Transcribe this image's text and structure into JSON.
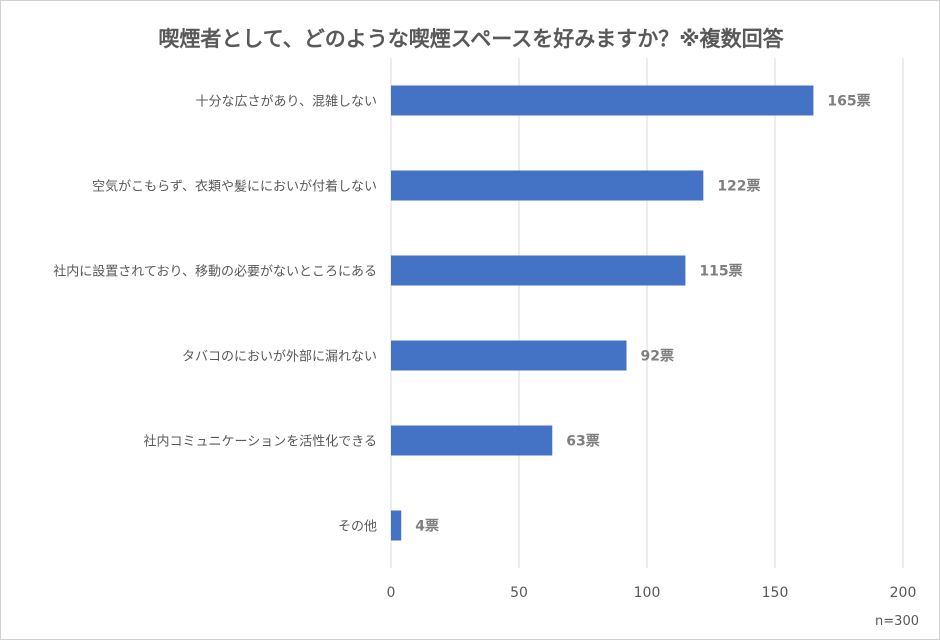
{
  "chart_data": {
    "type": "bar",
    "orientation": "horizontal",
    "title": "喫煙者として、どのような喫煙スペースを好みますか？※複数回答",
    "categories": [
      "十分な広さがあり、混雑しない",
      "空気がこもらず、衣類や髪ににおいが付着しない",
      "社内に設置されており、移動の必要がないところにある",
      "タバコのにおいが外部に漏れない",
      "社内コミュニケーションを活性化できる",
      "その他"
    ],
    "values": [
      165,
      122,
      115,
      92,
      63,
      4
    ],
    "data_labels": [
      "165票",
      "122票",
      "115票",
      "92票",
      "63票",
      "4票"
    ],
    "xlim": [
      0,
      200
    ],
    "xticks": [
      "0",
      "50",
      "100",
      "150",
      "200"
    ],
    "xtick_values": [
      0,
      50,
      100,
      150,
      200
    ],
    "grid": true,
    "bar_color": "#4472C4",
    "note": "n=300"
  }
}
